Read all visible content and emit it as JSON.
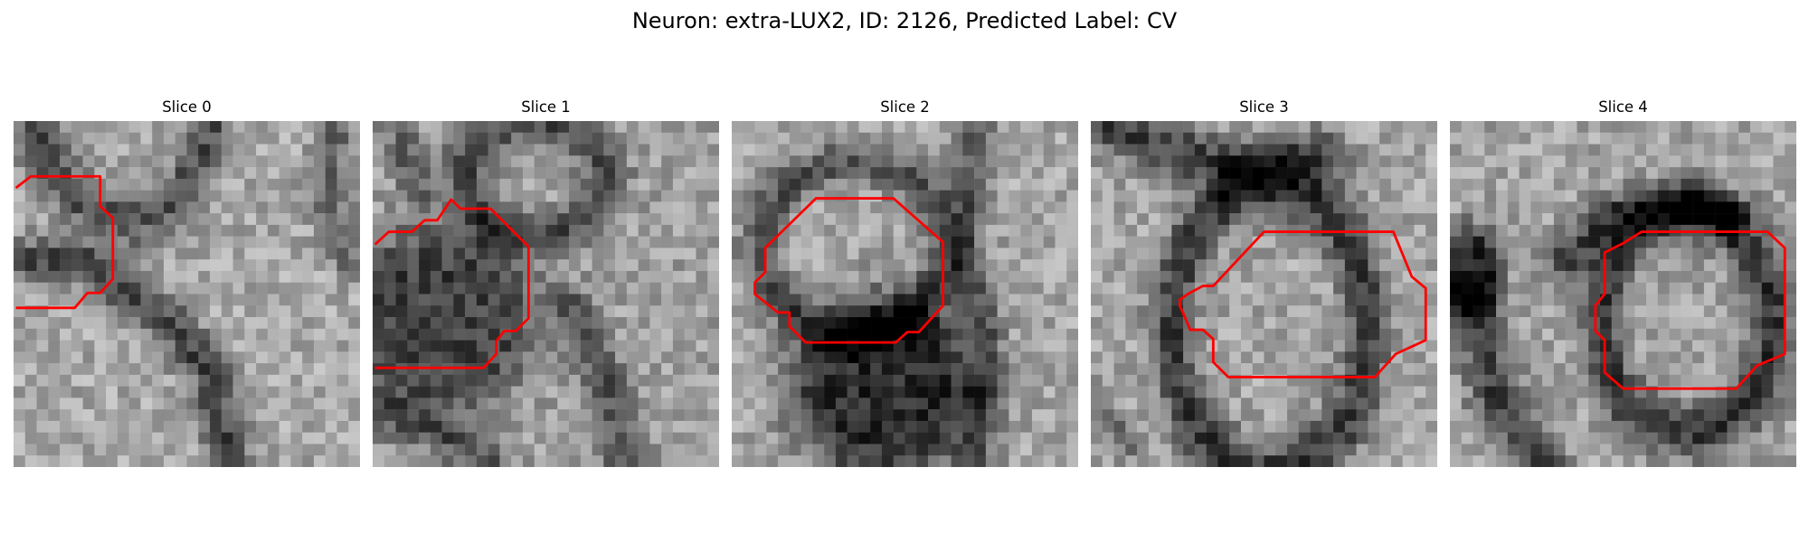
{
  "figure": {
    "title": "Neuron: extra-LUX2, ID: 2126, Predicted Label: CV",
    "overlay_color": "#ff0000"
  },
  "slices": [
    {
      "title": "Slice 0"
    },
    {
      "title": "Slice 1"
    },
    {
      "title": "Slice 2"
    },
    {
      "title": "Slice 3"
    },
    {
      "title": "Slice 4"
    }
  ]
}
